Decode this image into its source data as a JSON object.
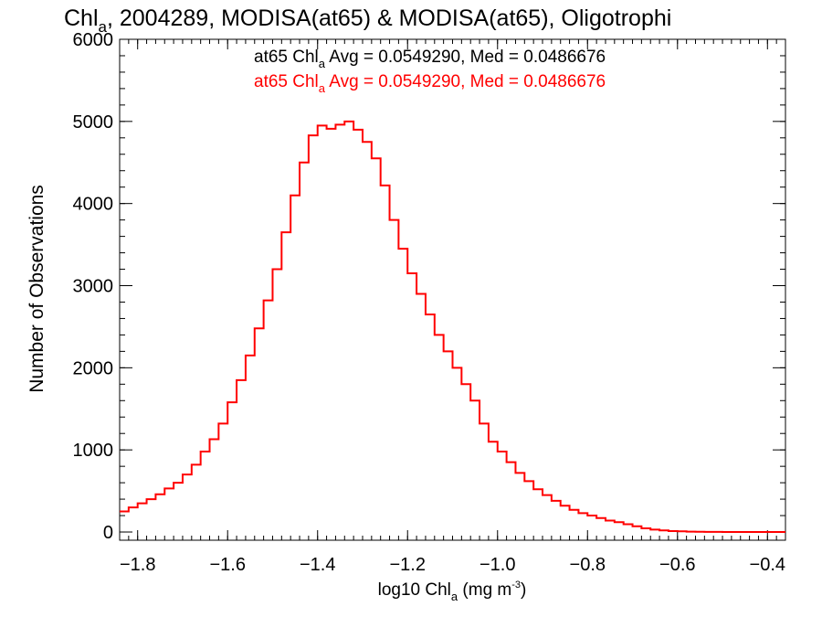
{
  "chart_data": {
    "type": "histogram-step",
    "title": {
      "prefix": "Chl",
      "subscript": "a",
      "rest": ", 2004289, MODISA(at65) & MODISA(at65), Oligotrophi"
    },
    "xlabel": {
      "prefix": "log10 Chl",
      "subscript": "a",
      "middle": " (mg m",
      "superscript": "-3",
      "suffix": ")"
    },
    "ylabel": "Number of Observations",
    "xlim": [
      -1.84,
      -0.36
    ],
    "ylim": [
      -100,
      6000
    ],
    "x_ticks": [
      -1.8,
      -1.6,
      -1.4,
      -1.2,
      -1.0,
      -0.8,
      -0.6,
      -0.4
    ],
    "x_tick_labels": [
      "−1.8",
      "−1.6",
      "−1.4",
      "−1.2",
      "−1.0",
      "−0.8",
      "−0.6",
      "−0.4"
    ],
    "y_ticks": [
      0,
      1000,
      2000,
      3000,
      4000,
      5000,
      6000
    ],
    "y_tick_labels": [
      "0",
      "1000",
      "2000",
      "3000",
      "4000",
      "5000",
      "6000"
    ],
    "legend": [
      {
        "prefix": "at65 Chl",
        "subscript": "a",
        "rest": " Avg = 0.0549290, Med = 0.0486676",
        "color": "#000000"
      },
      {
        "prefix": "at65 Chl",
        "subscript": "a",
        "rest": " Avg = 0.0549290, Med = 0.0486676",
        "color": "#ff0000"
      }
    ],
    "series": [
      {
        "color": "#ff0000",
        "x": [
          -1.84,
          -1.82,
          -1.8,
          -1.78,
          -1.76,
          -1.74,
          -1.72,
          -1.7,
          -1.68,
          -1.66,
          -1.64,
          -1.62,
          -1.6,
          -1.58,
          -1.56,
          -1.54,
          -1.52,
          -1.5,
          -1.48,
          -1.46,
          -1.44,
          -1.42,
          -1.4,
          -1.38,
          -1.36,
          -1.34,
          -1.32,
          -1.3,
          -1.28,
          -1.26,
          -1.24,
          -1.22,
          -1.2,
          -1.18,
          -1.16,
          -1.14,
          -1.12,
          -1.1,
          -1.08,
          -1.06,
          -1.04,
          -1.02,
          -1.0,
          -0.98,
          -0.96,
          -0.94,
          -0.92,
          -0.9,
          -0.88,
          -0.86,
          -0.84,
          -0.82,
          -0.8,
          -0.78,
          -0.76,
          -0.74,
          -0.72,
          -0.7,
          -0.68,
          -0.66,
          -0.64,
          -0.62,
          -0.6,
          -0.58,
          -0.56,
          -0.54,
          -0.52,
          -0.5,
          -0.48,
          -0.46,
          -0.44,
          -0.42,
          -0.4,
          -0.38,
          -0.36
        ],
        "y": [
          250,
          300,
          350,
          400,
          460,
          530,
          600,
          700,
          820,
          980,
          1130,
          1320,
          1580,
          1850,
          2150,
          2480,
          2820,
          3200,
          3650,
          4100,
          4500,
          4830,
          4950,
          4910,
          4960,
          5000,
          4900,
          4750,
          4550,
          4220,
          3800,
          3450,
          3150,
          2900,
          2650,
          2400,
          2200,
          2000,
          1800,
          1600,
          1320,
          1100,
          980,
          850,
          720,
          620,
          520,
          450,
          380,
          320,
          270,
          230,
          200,
          170,
          140,
          120,
          95,
          70,
          45,
          30,
          20,
          12,
          8,
          5,
          3,
          2,
          1,
          0,
          0,
          0,
          0,
          0,
          0,
          0,
          0
        ]
      }
    ]
  }
}
